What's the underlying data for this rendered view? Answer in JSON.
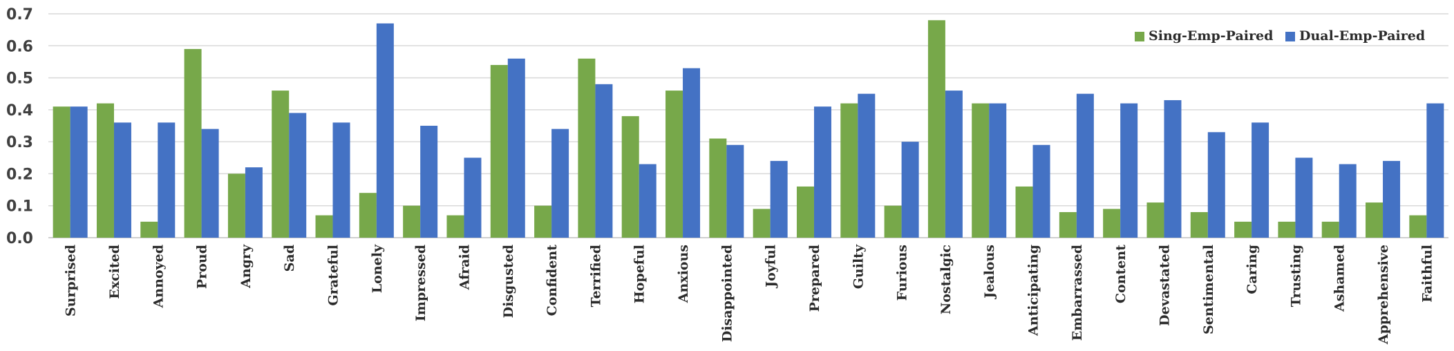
{
  "chart_data": {
    "type": "bar",
    "categories": [
      "Surprised",
      "Excited",
      "Annoyed",
      "Proud",
      "Angry",
      "Sad",
      "Grateful",
      "Lonely",
      "Impressed",
      "Afraid",
      "Disgusted",
      "Confident",
      "Terrified",
      "Hopeful",
      "Anxious",
      "Disappointed",
      "Joyful",
      "Prepared",
      "Guilty",
      "Furious",
      "Nostalgic",
      "Jealous",
      "Anticipating",
      "Embarrassed",
      "Content",
      "Devastated",
      "Sentimental",
      "Caring",
      "Trusting",
      "Ashamed",
      "Apprehensive",
      "Faithful"
    ],
    "series": [
      {
        "name": "Sing-Emp-Paired",
        "color": "#77a84a",
        "values": [
          0.41,
          0.42,
          0.05,
          0.59,
          0.2,
          0.46,
          0.07,
          0.14,
          0.1,
          0.07,
          0.54,
          0.1,
          0.56,
          0.38,
          0.46,
          0.31,
          0.09,
          0.16,
          0.42,
          0.1,
          0.68,
          0.42,
          0.16,
          0.08,
          0.09,
          0.11,
          0.08,
          0.05,
          0.05,
          0.05,
          0.11,
          0.07
        ]
      },
      {
        "name": "Dual-Emp-Paired",
        "color": "#4472c4",
        "values": [
          0.41,
          0.36,
          0.36,
          0.34,
          0.22,
          0.39,
          0.36,
          0.67,
          0.35,
          0.25,
          0.56,
          0.34,
          0.48,
          0.23,
          0.53,
          0.29,
          0.24,
          0.41,
          0.45,
          0.3,
          0.46,
          0.42,
          0.29,
          0.45,
          0.42,
          0.43,
          0.33,
          0.36,
          0.25,
          0.23,
          0.24,
          0.42
        ]
      }
    ],
    "yticks": [
      "0.0",
      "0.1",
      "0.2",
      "0.3",
      "0.4",
      "0.5",
      "0.6",
      "0.7"
    ],
    "ylim": [
      0,
      0.7
    ],
    "grid": true,
    "legend_position": "top-right",
    "title": "",
    "xlabel": "",
    "ylabel": ""
  }
}
